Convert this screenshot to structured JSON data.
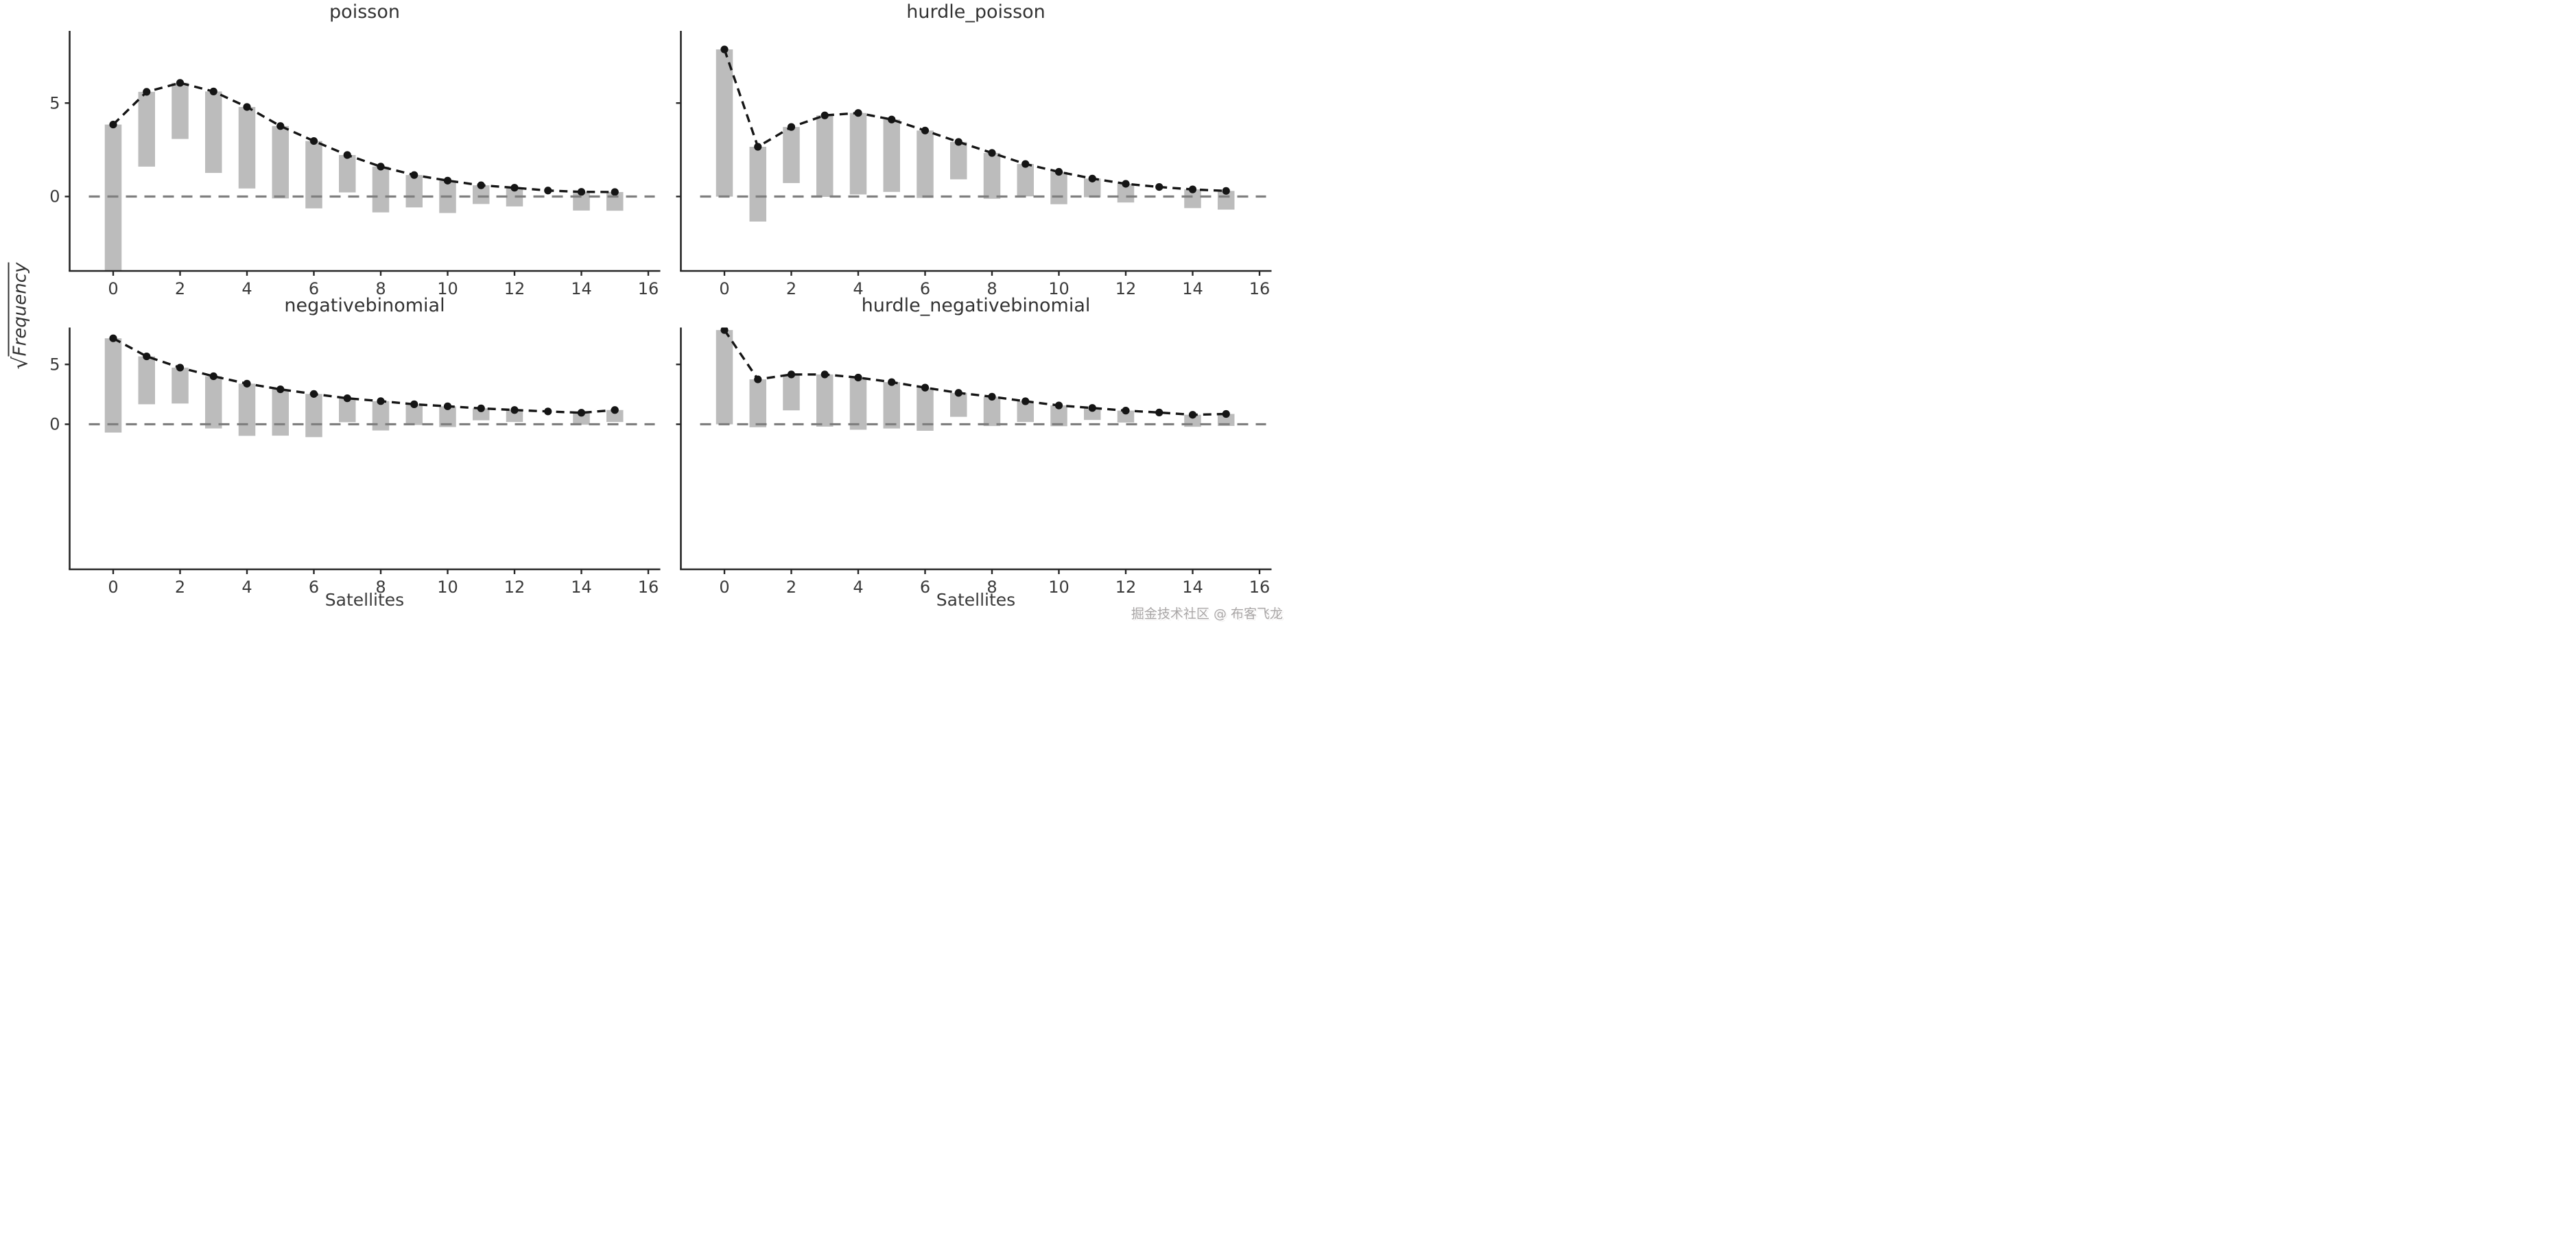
{
  "figure": {
    "watermark": "掘金技术社区 @ 布客飞龙",
    "colors": {
      "bar": "#bcbcbc",
      "expected_line": "#151515",
      "zero_line": "#7f7f7f",
      "spine": "#262626",
      "tick_text": "#3a3a3a",
      "title_text": "#333333",
      "watermark_text": "#a9a6a6",
      "background": "#ffffff"
    }
  },
  "chart_data": {
    "type": "bar",
    "subtype": "hanging-rootogram with dashed expected-count line and point markers",
    "title": "",
    "xlabel": "Satellites",
    "ylabel": "√Frequency",
    "ylabel_parts": {
      "radical": "√",
      "text": "Frequency"
    },
    "categories": [
      0,
      1,
      2,
      3,
      4,
      5,
      6,
      7,
      8,
      9,
      10,
      11,
      12,
      13,
      14,
      15
    ],
    "observed_frequencies": [
      62,
      16,
      9,
      19,
      19,
      15,
      13,
      4,
      6,
      3,
      3,
      1,
      1,
      0,
      1,
      1
    ],
    "observed_sqrt": [
      7.87,
      4.0,
      3.0,
      4.36,
      4.36,
      3.87,
      3.61,
      2.0,
      2.45,
      1.73,
      1.73,
      1.0,
      1.0,
      0,
      1.0,
      1.0
    ],
    "x_ticks": [
      0,
      2,
      4,
      6,
      8,
      10,
      12,
      14,
      16
    ],
    "y_ticks": [
      0,
      5
    ],
    "grid": "off",
    "legend": "none",
    "rows": [
      {
        "ylim": [
          -4.0,
          8.9
        ]
      },
      {
        "ylim": [
          -12.1,
          8.1
        ]
      }
    ],
    "subplots": [
      {
        "row": 0,
        "col": 0,
        "title": "poisson",
        "expected_sqrt": [
          3.85,
          5.6,
          6.08,
          5.62,
          4.79,
          3.77,
          2.97,
          2.22,
          1.6,
          1.15,
          0.85,
          0.6,
          0.47,
          0.32,
          0.25,
          0.24
        ]
      },
      {
        "row": 0,
        "col": 1,
        "title": "hurdle_poisson",
        "expected_sqrt": [
          7.87,
          2.66,
          3.72,
          4.34,
          4.47,
          4.12,
          3.53,
          2.92,
          2.33,
          1.74,
          1.32,
          0.96,
          0.68,
          0.51,
          0.38,
          0.3
        ]
      },
      {
        "row": 1,
        "col": 0,
        "title": "negativebinomial",
        "expected_sqrt": [
          7.18,
          5.67,
          4.73,
          4.01,
          3.39,
          2.92,
          2.53,
          2.17,
          1.93,
          1.67,
          1.5,
          1.33,
          1.19,
          1.07,
          0.96,
          1.19
        ]
      },
      {
        "row": 1,
        "col": 1,
        "title": "hurdle_negativebinomial",
        "expected_sqrt": [
          7.87,
          3.75,
          4.16,
          4.16,
          3.9,
          3.52,
          3.06,
          2.62,
          2.3,
          1.92,
          1.57,
          1.36,
          1.14,
          0.98,
          0.79,
          0.86
        ]
      }
    ]
  }
}
